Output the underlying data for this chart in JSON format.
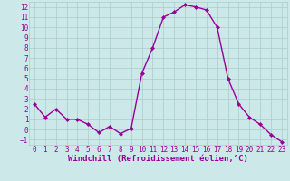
{
  "x": [
    0,
    1,
    2,
    3,
    4,
    5,
    6,
    7,
    8,
    9,
    10,
    11,
    12,
    13,
    14,
    15,
    16,
    17,
    18,
    19,
    20,
    21,
    22,
    23
  ],
  "y": [
    2.5,
    1.2,
    2.0,
    1.0,
    1.0,
    0.5,
    -0.3,
    0.3,
    -0.4,
    0.1,
    5.5,
    8.0,
    11.0,
    11.5,
    12.2,
    12.0,
    11.7,
    10.0,
    5.0,
    2.5,
    1.2,
    0.5,
    -0.5,
    -1.2
  ],
  "line_color": "#990099",
  "marker": "D",
  "marker_size": 2,
  "bg_color": "#cce8e8",
  "grid_color": "#aacccc",
  "xlabel": "Windchill (Refroidissement éolien,°C)",
  "xlabel_color": "#990099",
  "ylim": [
    -1.5,
    12.5
  ],
  "xlim": [
    -0.5,
    23.5
  ],
  "yticks": [
    -1,
    0,
    1,
    2,
    3,
    4,
    5,
    6,
    7,
    8,
    9,
    10,
    11,
    12
  ],
  "xticks": [
    0,
    1,
    2,
    3,
    4,
    5,
    6,
    7,
    8,
    9,
    10,
    11,
    12,
    13,
    14,
    15,
    16,
    17,
    18,
    19,
    20,
    21,
    22,
    23
  ],
  "tick_color": "#990099",
  "tick_fontsize": 5.5,
  "xlabel_fontsize": 6.5,
  "line_width": 1.0
}
